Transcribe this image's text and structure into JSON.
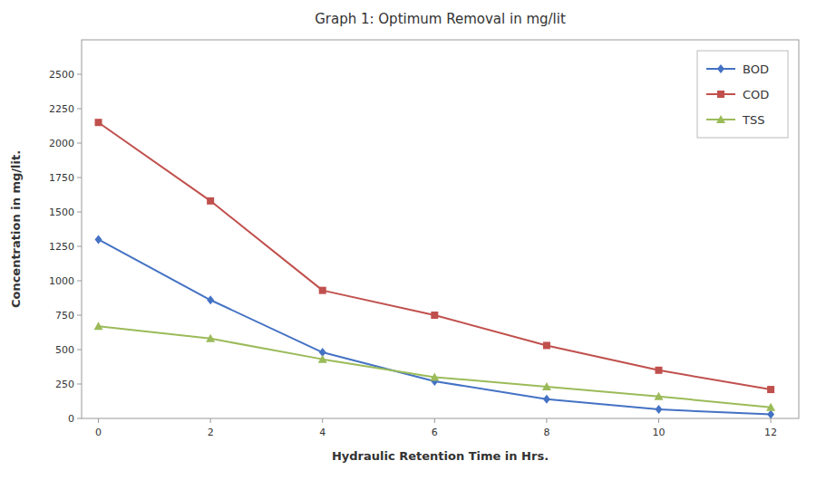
{
  "chart_data": {
    "type": "line",
    "title": "Graph 1: Optimum Removal in mg/lit",
    "xlabel": "Hydraulic Retention Time in Hrs.",
    "ylabel": "Concentration in mg/lit.",
    "x": [
      0,
      2,
      4,
      6,
      8,
      10,
      12
    ],
    "series": [
      {
        "name": "BOD",
        "color": "#4472C4",
        "marker": "diamond",
        "values": [
          1300,
          860,
          480,
          270,
          140,
          65,
          30
        ]
      },
      {
        "name": "COD",
        "color": "#C0504D",
        "marker": "square",
        "values": [
          2150,
          1580,
          930,
          750,
          530,
          350,
          210
        ]
      },
      {
        "name": "TSS",
        "color": "#9BBB59",
        "marker": "triangle",
        "values": [
          670,
          580,
          430,
          300,
          230,
          160,
          80
        ]
      }
    ],
    "xlim": [
      -0.3,
      12.5
    ],
    "ylim": [
      0,
      2750
    ],
    "xticks": [
      0,
      2,
      4,
      6,
      8,
      10,
      12
    ],
    "yticks": [
      0,
      250,
      500,
      750,
      1000,
      1250,
      1500,
      1750,
      2000,
      2250,
      2500
    ],
    "grid": false,
    "legend": "upper right"
  }
}
